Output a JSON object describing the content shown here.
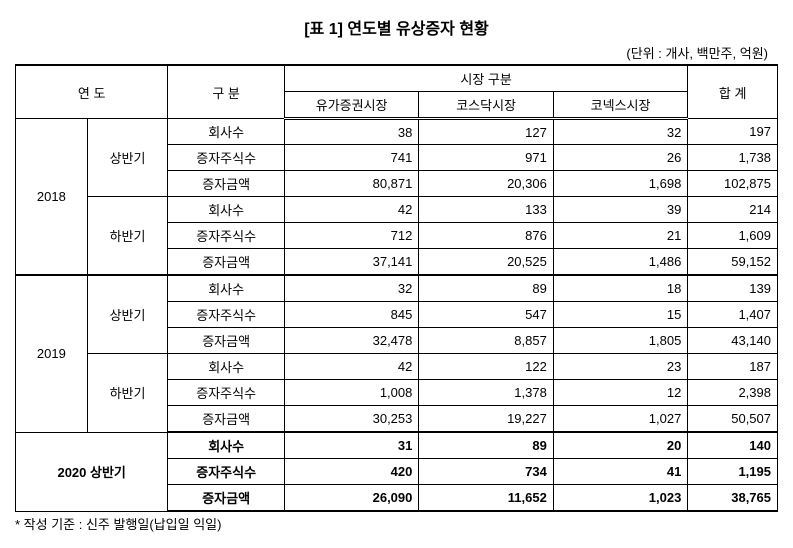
{
  "title": "[표 1] 연도별 유상증자 현황",
  "unit": "(단위 : 개사, 백만주, 억원)",
  "footnote": "* 작성 기준 : 신주 발행일(납입일 익일)",
  "headers": {
    "year": "연   도",
    "category": "구   분",
    "market": "시장 구분",
    "m1": "유가증권시장",
    "m2": "코스닥시장",
    "m3": "코넥스시장",
    "total": "합   계"
  },
  "metrics": {
    "cnt": "회사수",
    "shr": "증자주식수",
    "amt": "증자금액"
  },
  "periods": {
    "h1": "상반기",
    "h2": "하반기"
  },
  "years": {
    "y2018": "2018",
    "y2019": "2019",
    "y2020": "2020 상반기"
  },
  "rows": {
    "y2018h1cnt": {
      "m1": "38",
      "m2": "127",
      "m3": "32",
      "t": "197"
    },
    "y2018h1shr": {
      "m1": "741",
      "m2": "971",
      "m3": "26",
      "t": "1,738"
    },
    "y2018h1amt": {
      "m1": "80,871",
      "m2": "20,306",
      "m3": "1,698",
      "t": "102,875"
    },
    "y2018h2cnt": {
      "m1": "42",
      "m2": "133",
      "m3": "39",
      "t": "214"
    },
    "y2018h2shr": {
      "m1": "712",
      "m2": "876",
      "m3": "21",
      "t": "1,609"
    },
    "y2018h2amt": {
      "m1": "37,141",
      "m2": "20,525",
      "m3": "1,486",
      "t": "59,152"
    },
    "y2019h1cnt": {
      "m1": "32",
      "m2": "89",
      "m3": "18",
      "t": "139"
    },
    "y2019h1shr": {
      "m1": "845",
      "m2": "547",
      "m3": "15",
      "t": "1,407"
    },
    "y2019h1amt": {
      "m1": "32,478",
      "m2": "8,857",
      "m3": "1,805",
      "t": "43,140"
    },
    "y2019h2cnt": {
      "m1": "42",
      "m2": "122",
      "m3": "23",
      "t": "187"
    },
    "y2019h2shr": {
      "m1": "1,008",
      "m2": "1,378",
      "m3": "12",
      "t": "2,398"
    },
    "y2019h2amt": {
      "m1": "30,253",
      "m2": "19,227",
      "m3": "1,027",
      "t": "50,507"
    },
    "y2020cnt": {
      "m1": "31",
      "m2": "89",
      "m3": "20",
      "t": "140"
    },
    "y2020shr": {
      "m1": "420",
      "m2": "734",
      "m3": "41",
      "t": "1,195"
    },
    "y2020amt": {
      "m1": "26,090",
      "m2": "11,652",
      "m3": "1,023",
      "t": "38,765"
    }
  },
  "style": {
    "border_color": "#000000",
    "bg": "#ffffff",
    "font_size_body": 13,
    "font_size_title": 16
  }
}
